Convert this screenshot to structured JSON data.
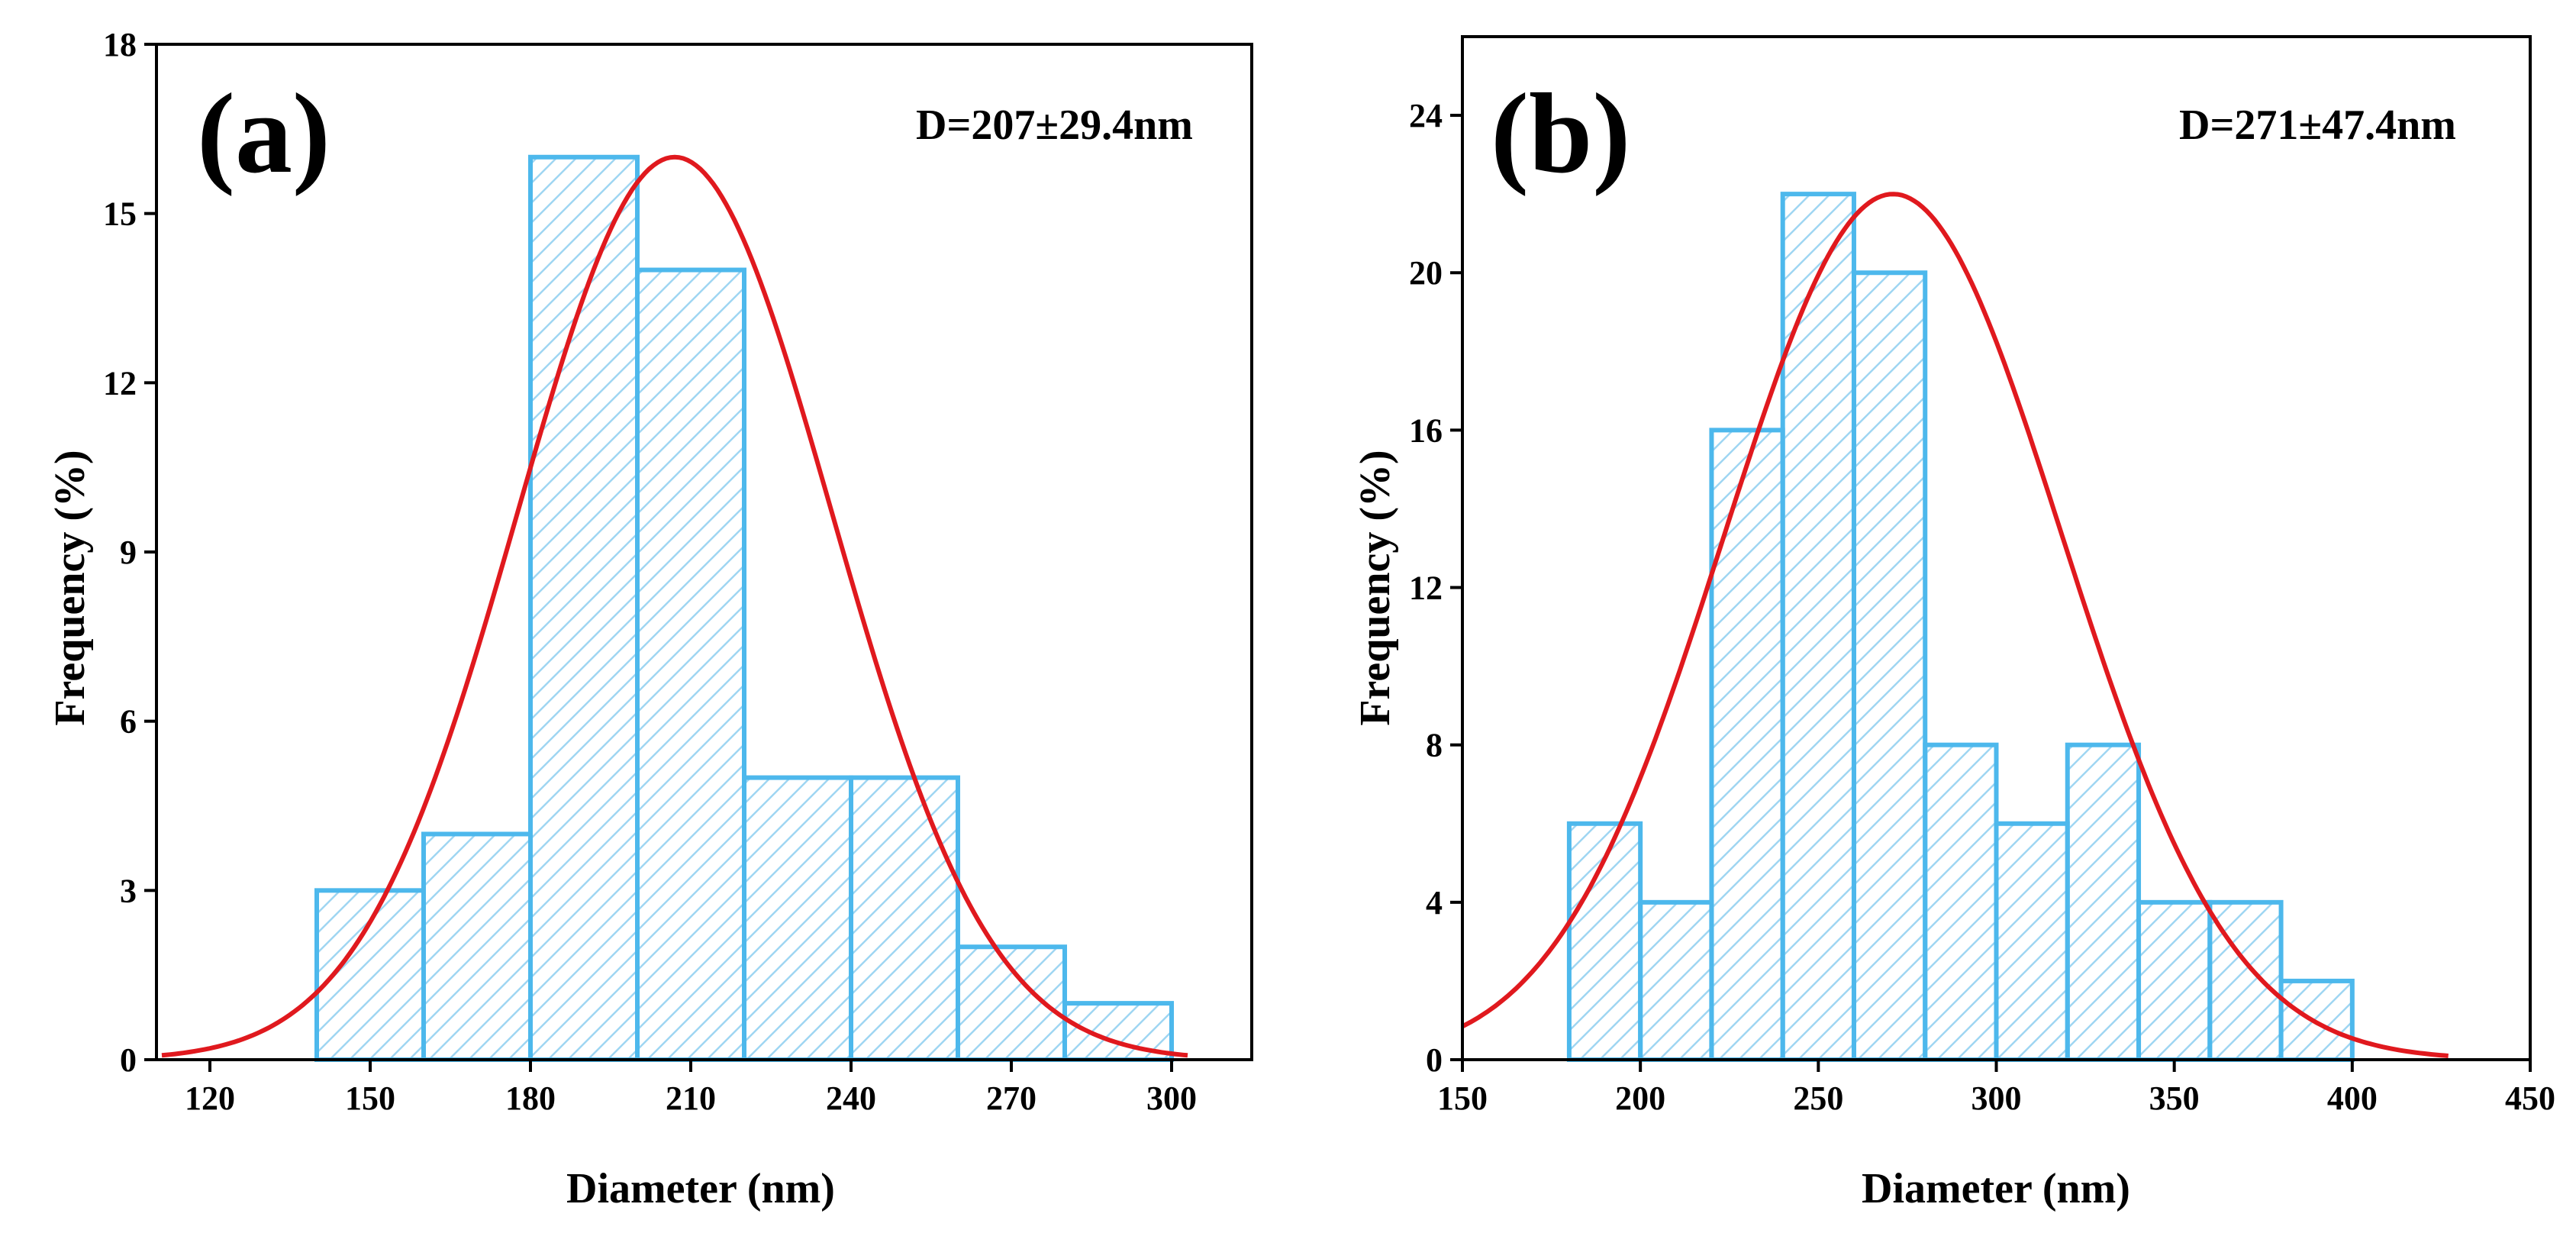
{
  "chart_data": [
    {
      "type": "bar",
      "panel_label": "(a)",
      "annotation": "D=207±29.4nm",
      "xlabel": "Diameter (nm)",
      "ylabel": "Frequency (%)",
      "xlim": [
        110,
        315
      ],
      "ylim": [
        0,
        18
      ],
      "xticks": [
        120,
        150,
        180,
        210,
        240,
        270,
        300
      ],
      "yticks": [
        0,
        3,
        6,
        9,
        12,
        15,
        18
      ],
      "bin_width": 20,
      "bins": [
        {
          "start": 140,
          "end": 160,
          "value": 3
        },
        {
          "start": 160,
          "end": 180,
          "value": 4
        },
        {
          "start": 180,
          "end": 200,
          "value": 16
        },
        {
          "start": 200,
          "end": 220,
          "value": 14
        },
        {
          "start": 220,
          "end": 240,
          "value": 5
        },
        {
          "start": 240,
          "end": 260,
          "value": 5
        },
        {
          "start": 260,
          "end": 280,
          "value": 2
        },
        {
          "start": 280,
          "end": 300,
          "value": 1
        }
      ],
      "fit": {
        "type": "gaussian",
        "mean": 207,
        "sd": 29.4,
        "peak": 16,
        "x_range": [
          111,
          303
        ]
      },
      "legend": "none",
      "grid": false,
      "colors": {
        "bar_edge": "#4db8ec",
        "hatch": "#9fd6f2",
        "bar_fill": "#ffffff",
        "fit": "#e0191e",
        "axis": "#000000"
      }
    },
    {
      "type": "bar",
      "panel_label": "(b)",
      "annotation": "D=271±47.4nm",
      "xlabel": "Diameter (nm)",
      "ylabel": "Frequency (%)",
      "xlim": [
        150,
        450
      ],
      "ylim": [
        0,
        26
      ],
      "xticks": [
        150,
        200,
        250,
        300,
        350,
        400,
        450
      ],
      "yticks": [
        0,
        4,
        8,
        12,
        16,
        20,
        24
      ],
      "bin_width": 20,
      "bins": [
        {
          "start": 180,
          "end": 200,
          "value": 6
        },
        {
          "start": 200,
          "end": 220,
          "value": 4
        },
        {
          "start": 220,
          "end": 240,
          "value": 16
        },
        {
          "start": 240,
          "end": 260,
          "value": 22
        },
        {
          "start": 260,
          "end": 280,
          "value": 20
        },
        {
          "start": 280,
          "end": 300,
          "value": 8
        },
        {
          "start": 300,
          "end": 320,
          "value": 6
        },
        {
          "start": 320,
          "end": 340,
          "value": 8
        },
        {
          "start": 340,
          "end": 360,
          "value": 4
        },
        {
          "start": 360,
          "end": 380,
          "value": 4
        },
        {
          "start": 380,
          "end": 400,
          "value": 2
        }
      ],
      "fit": {
        "type": "gaussian",
        "mean": 271,
        "sd": 47.4,
        "peak": 22,
        "x_range": [
          150,
          427
        ]
      },
      "legend": "none",
      "grid": false,
      "colors": {
        "bar_edge": "#4db8ec",
        "hatch": "#9fd6f2",
        "bar_fill": "#ffffff",
        "fit": "#e0191e",
        "axis": "#000000"
      }
    }
  ]
}
